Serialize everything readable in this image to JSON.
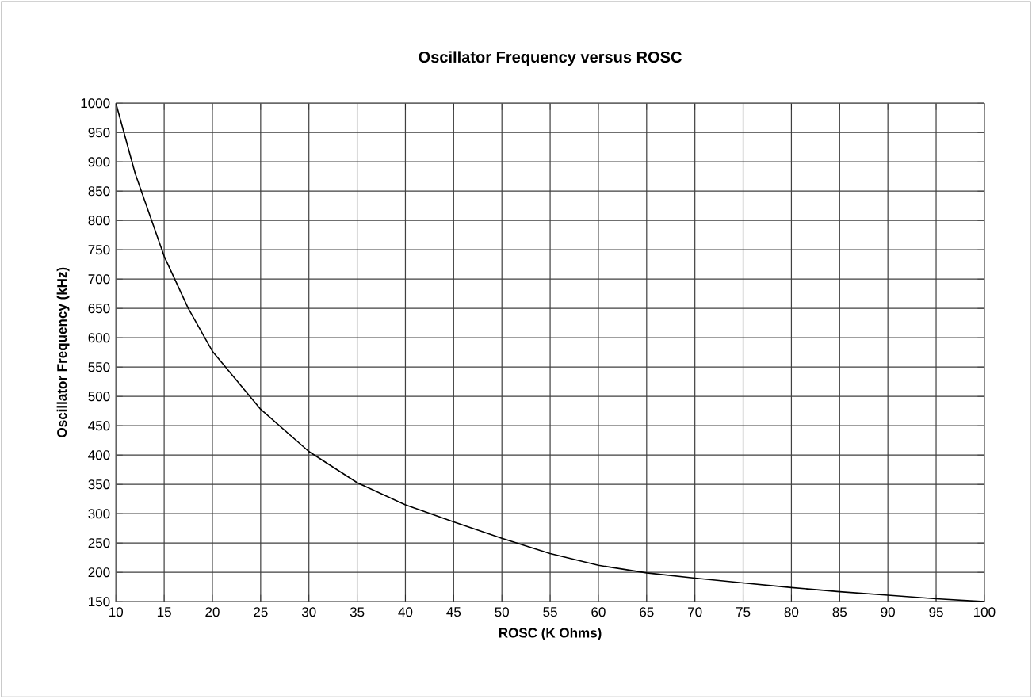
{
  "chart_data": {
    "type": "line",
    "title": "Oscillator Frequency versus ROSC",
    "xlabel": "ROSC (K Ohms)",
    "ylabel": "Oscillator Frequency (kHz)",
    "series": [
      {
        "color": "#000000",
        "x": [
          10,
          12,
          15,
          17.5,
          20,
          25,
          30,
          35,
          40,
          45,
          50,
          55,
          60,
          65,
          70,
          75,
          80,
          85,
          90,
          95,
          100
        ],
        "values": [
          1000,
          880,
          739,
          650,
          577,
          478,
          406,
          353,
          315,
          286,
          258,
          232,
          212,
          199,
          190,
          182,
          174,
          167,
          161,
          155,
          150
        ]
      }
    ],
    "xlim": [
      10,
      100
    ],
    "xticks": [
      10,
      15,
      20,
      25,
      30,
      35,
      40,
      45,
      50,
      55,
      60,
      65,
      70,
      75,
      80,
      85,
      90,
      95,
      100
    ],
    "ylim": [
      150,
      1000
    ],
    "yticks": [
      150,
      200,
      250,
      300,
      350,
      400,
      450,
      500,
      550,
      600,
      650,
      700,
      750,
      800,
      850,
      900,
      950,
      1000
    ],
    "grid": true,
    "marker": "none",
    "line_style": "solid"
  }
}
